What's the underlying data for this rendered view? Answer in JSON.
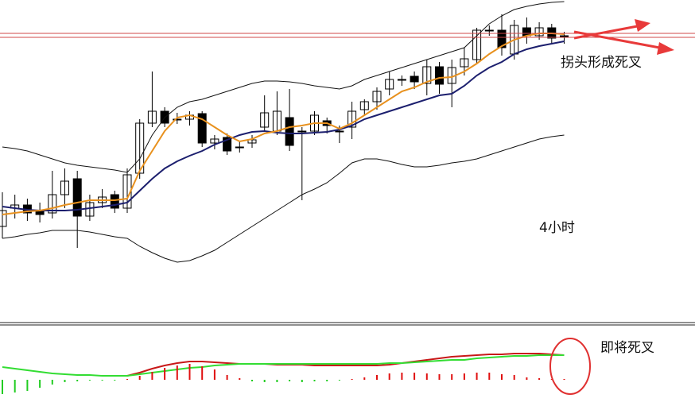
{
  "chart_data": [
    {
      "type": "candlestick",
      "ylim": [
        0,
        405
      ],
      "open": [
        120,
        143,
        147,
        140,
        137,
        160,
        180,
        133,
        150,
        160,
        143,
        187,
        250,
        265,
        255,
        255,
        262,
        225,
        232,
        220,
        225,
        245,
        240,
        257,
        240,
        240,
        253,
        240,
        245,
        267,
        277,
        293,
        305,
        309,
        300,
        321,
        300,
        321,
        330,
        367,
        367,
        337,
        370,
        360,
        370,
        360
      ],
      "high": [
        163,
        160,
        155,
        150,
        190,
        193,
        190,
        160,
        167,
        165,
        193,
        255,
        315,
        270,
        263,
        265,
        265,
        235,
        237,
        227,
        235,
        285,
        290,
        293,
        245,
        265,
        257,
        247,
        277,
        280,
        295,
        315,
        310,
        315,
        330,
        327,
        330,
        345,
        370,
        373,
        387,
        380,
        383,
        377,
        375,
        365
      ],
      "low": [
        105,
        130,
        127,
        125,
        130,
        143,
        93,
        127,
        143,
        137,
        137,
        180,
        245,
        245,
        249,
        247,
        220,
        217,
        210,
        213,
        219,
        240,
        235,
        215,
        153,
        235,
        237,
        225,
        230,
        260,
        267,
        285,
        297,
        293,
        285,
        287,
        270,
        310,
        325,
        360,
        335,
        330,
        350,
        355,
        350,
        350
      ],
      "close": [
        140,
        147,
        137,
        135,
        160,
        177,
        133,
        150,
        157,
        143,
        185,
        250,
        265,
        250,
        255,
        260,
        225,
        230,
        215,
        220,
        229,
        263,
        265,
        222,
        240,
        260,
        247,
        240,
        265,
        277,
        290,
        305,
        305,
        302,
        321,
        299,
        320,
        331,
        367,
        367,
        345,
        373,
        360,
        370,
        357,
        360
      ],
      "up_color": "#ffffff",
      "down_color": "#000000",
      "series": [
        {
          "color": "#e8911e",
          "values": [
            135,
            137,
            139,
            140,
            143,
            147,
            150,
            153,
            153,
            153,
            155,
            190,
            215,
            240,
            257,
            260,
            255,
            245,
            235,
            227,
            230,
            237,
            240,
            245,
            247,
            250,
            250,
            243,
            250,
            260,
            270,
            280,
            290,
            295,
            302,
            307,
            308,
            315,
            325,
            337,
            347,
            355,
            360,
            363,
            363,
            362
          ]
        },
        {
          "color": "#1c1f6e",
          "values": [
            145,
            143,
            141,
            140,
            140,
            140,
            141,
            143,
            145,
            147,
            150,
            165,
            180,
            193,
            202,
            209,
            215,
            223,
            229,
            235,
            239,
            240,
            238,
            237,
            237,
            238,
            239,
            242,
            247,
            255,
            260,
            265,
            270,
            275,
            280,
            285,
            287,
            297,
            310,
            320,
            327,
            337,
            343,
            347,
            350,
            353
          ]
        },
        {
          "color": "#111111",
          "values": [
            220,
            218,
            215,
            210,
            205,
            200,
            197,
            195,
            193,
            191,
            188,
            205,
            235,
            257,
            270,
            277,
            280,
            285,
            290,
            295,
            300,
            303,
            303,
            302,
            300,
            297,
            295,
            293,
            297,
            305,
            310,
            315,
            320,
            325,
            330,
            335,
            340,
            345,
            360,
            375,
            385,
            393,
            397,
            400,
            402,
            403
          ]
        },
        {
          "color": "#111111",
          "values": [
            105,
            107,
            110,
            112,
            115,
            115,
            115,
            113,
            110,
            107,
            105,
            95,
            87,
            80,
            75,
            77,
            83,
            90,
            100,
            110,
            120,
            130,
            140,
            150,
            160,
            167,
            175,
            187,
            200,
            205,
            205,
            202,
            198,
            195,
            195,
            197,
            200,
            202,
            205,
            210,
            215,
            220,
            225,
            230,
            233,
            235
          ]
        }
      ],
      "hlines": [
        363,
        358
      ],
      "hline_color": "#d04848",
      "annotations": [
        "拐头形成死叉",
        "4小时"
      ]
    },
    {
      "type": "macd",
      "ylim": [
        -33,
        68
      ],
      "histogram": [
        -18,
        -16,
        -14,
        -10,
        -6,
        -3,
        -2,
        -1,
        -1,
        -1,
        1,
        5,
        10,
        15,
        18,
        20,
        17,
        13,
        6,
        2,
        -2,
        -3,
        -3,
        -2,
        -3,
        -2,
        -2,
        -1,
        1,
        3,
        6,
        8,
        9,
        9,
        8,
        7,
        7,
        8,
        9,
        9,
        7,
        6,
        3,
        2,
        1,
        1
      ],
      "pos_color": "#e01010",
      "neg_color": "#22cc22",
      "series": [
        {
          "color": "#33dd33",
          "values": [
            16,
            14,
            12,
            10,
            8,
            7,
            6,
            6,
            5,
            5,
            5,
            7,
            9,
            11,
            13,
            15,
            16,
            18,
            19,
            20,
            20,
            20,
            20,
            20,
            20,
            20,
            20,
            20,
            20,
            20,
            20,
            21,
            21,
            22,
            23,
            24,
            25,
            25,
            27,
            28,
            29,
            30,
            30,
            31,
            31,
            31
          ]
        },
        {
          "color": "#c81818",
          "values": [
            null,
            null,
            null,
            null,
            null,
            null,
            null,
            null,
            null,
            null,
            5,
            9,
            14,
            18,
            21,
            23,
            23,
            22,
            21,
            20,
            20,
            20,
            19,
            19,
            19,
            18,
            18,
            18,
            18,
            18,
            18,
            19,
            21,
            23,
            25,
            27,
            29,
            30,
            31,
            32,
            32,
            33,
            33,
            33,
            32,
            31
          ]
        }
      ],
      "annotations": [
        "即将死叉"
      ]
    }
  ]
}
